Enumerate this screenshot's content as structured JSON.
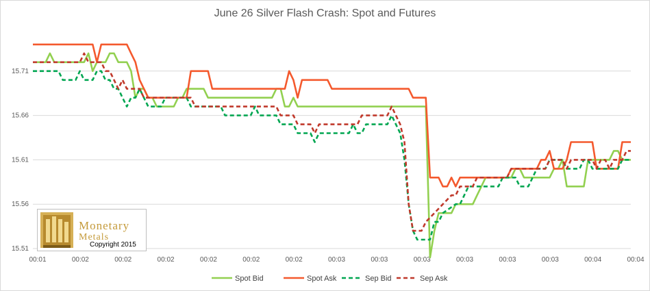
{
  "chart_data": {
    "type": "line",
    "title": "June 26 Silver Flash Crash: Spot and Futures",
    "xlabel": "",
    "ylabel": "",
    "ylim": [
      15.51,
      15.76
    ],
    "yticks": [
      "15.51",
      "15.56",
      "15.61",
      "15.66",
      "15.71"
    ],
    "xticks": [
      "00:01",
      "00:02",
      "00:02",
      "00:02",
      "00:02",
      "00:02",
      "00:02",
      "00:03",
      "00:03",
      "00:03",
      "00:03",
      "00:03",
      "00:03",
      "00:04",
      "00:04"
    ],
    "x_count": 141,
    "grid": "horizontal",
    "legend_position": "bottom",
    "series": [
      {
        "name": "Spot Bid",
        "color": "#92d050",
        "dash": "solid",
        "points": [
          [
            0,
            15.72
          ],
          [
            3,
            15.72
          ],
          [
            4,
            15.73
          ],
          [
            5,
            15.72
          ],
          [
            12,
            15.72
          ],
          [
            13,
            15.73
          ],
          [
            14,
            15.71
          ],
          [
            15,
            15.72
          ],
          [
            17,
            15.72
          ],
          [
            18,
            15.73
          ],
          [
            19,
            15.73
          ],
          [
            20,
            15.72
          ],
          [
            22,
            15.72
          ],
          [
            23,
            15.71
          ],
          [
            24,
            15.68
          ],
          [
            25,
            15.69
          ],
          [
            26,
            15.69
          ],
          [
            27,
            15.68
          ],
          [
            28,
            15.68
          ],
          [
            29,
            15.67
          ],
          [
            33,
            15.67
          ],
          [
            34,
            15.68
          ],
          [
            35,
            15.68
          ],
          [
            36,
            15.69
          ],
          [
            40,
            15.69
          ],
          [
            41,
            15.68
          ],
          [
            52,
            15.68
          ],
          [
            56,
            15.68
          ],
          [
            57,
            15.69
          ],
          [
            58,
            15.69
          ],
          [
            59,
            15.67
          ],
          [
            60,
            15.67
          ],
          [
            61,
            15.68
          ],
          [
            62,
            15.67
          ],
          [
            85,
            15.67
          ],
          [
            86,
            15.67
          ],
          [
            87,
            15.67
          ],
          [
            88,
            15.67
          ],
          [
            89,
            15.67
          ],
          [
            90,
            15.67
          ],
          [
            91,
            15.67
          ],
          [
            92,
            15.67
          ],
          [
            93,
            15.5
          ],
          [
            94,
            15.53
          ],
          [
            95,
            15.55
          ],
          [
            96,
            15.55
          ],
          [
            97,
            15.55
          ],
          [
            98,
            15.55
          ],
          [
            99,
            15.56
          ],
          [
            100,
            15.56
          ],
          [
            103,
            15.56
          ],
          [
            104,
            15.57
          ],
          [
            105,
            15.58
          ],
          [
            106,
            15.59
          ],
          [
            107,
            15.59
          ],
          [
            108,
            15.59
          ],
          [
            111,
            15.59
          ],
          [
            112,
            15.59
          ],
          [
            113,
            15.6
          ],
          [
            114,
            15.6
          ],
          [
            115,
            15.59
          ],
          [
            121,
            15.59
          ],
          [
            122,
            15.6
          ],
          [
            123,
            15.6
          ],
          [
            124,
            15.61
          ],
          [
            125,
            15.58
          ],
          [
            129,
            15.58
          ],
          [
            130,
            15.61
          ],
          [
            135,
            15.61
          ],
          [
            136,
            15.62
          ],
          [
            137,
            15.62
          ],
          [
            138,
            15.61
          ],
          [
            139,
            15.61
          ],
          [
            140,
            15.61
          ]
        ]
      },
      {
        "name": "Spot Ask",
        "color": "#f4592d",
        "dash": "solid",
        "points": [
          [
            0,
            15.74
          ],
          [
            14,
            15.74
          ],
          [
            15,
            15.72
          ],
          [
            16,
            15.74
          ],
          [
            22,
            15.74
          ],
          [
            23,
            15.73
          ],
          [
            24,
            15.72
          ],
          [
            25,
            15.7
          ],
          [
            26,
            15.69
          ],
          [
            27,
            15.68
          ],
          [
            36,
            15.68
          ],
          [
            37,
            15.71
          ],
          [
            41,
            15.71
          ],
          [
            42,
            15.69
          ],
          [
            59,
            15.69
          ],
          [
            60,
            15.71
          ],
          [
            61,
            15.7
          ],
          [
            62,
            15.68
          ],
          [
            63,
            15.7
          ],
          [
            69,
            15.7
          ],
          [
            70,
            15.69
          ],
          [
            81,
            15.69
          ],
          [
            88,
            15.69
          ],
          [
            89,
            15.68
          ],
          [
            92,
            15.68
          ],
          [
            93,
            15.59
          ],
          [
            95,
            15.59
          ],
          [
            96,
            15.58
          ],
          [
            97,
            15.58
          ],
          [
            98,
            15.59
          ],
          [
            99,
            15.58
          ],
          [
            100,
            15.59
          ],
          [
            101,
            15.59
          ],
          [
            111,
            15.59
          ],
          [
            112,
            15.6
          ],
          [
            113,
            15.6
          ],
          [
            118,
            15.6
          ],
          [
            119,
            15.61
          ],
          [
            120,
            15.61
          ],
          [
            121,
            15.62
          ],
          [
            122,
            15.6
          ],
          [
            123,
            15.6
          ],
          [
            124,
            15.6
          ],
          [
            125,
            15.61
          ],
          [
            126,
            15.63
          ],
          [
            131,
            15.63
          ],
          [
            132,
            15.6
          ],
          [
            133,
            15.6
          ],
          [
            134,
            15.6
          ],
          [
            135,
            15.6
          ],
          [
            136,
            15.6
          ],
          [
            137,
            15.6
          ],
          [
            138,
            15.63
          ],
          [
            140,
            15.63
          ]
        ]
      },
      {
        "name": "Sep Bid",
        "color": "#00a651",
        "dash": "dashed",
        "points": [
          [
            0,
            15.71
          ],
          [
            6,
            15.71
          ],
          [
            7,
            15.7
          ],
          [
            10,
            15.7
          ],
          [
            11,
            15.71
          ],
          [
            12,
            15.7
          ],
          [
            14,
            15.7
          ],
          [
            15,
            15.71
          ],
          [
            16,
            15.71
          ],
          [
            17,
            15.7
          ],
          [
            18,
            15.7
          ],
          [
            19,
            15.69
          ],
          [
            20,
            15.69
          ],
          [
            21,
            15.68
          ],
          [
            22,
            15.67
          ],
          [
            23,
            15.68
          ],
          [
            24,
            15.68
          ],
          [
            25,
            15.69
          ],
          [
            26,
            15.68
          ],
          [
            27,
            15.67
          ],
          [
            30,
            15.67
          ],
          [
            31,
            15.68
          ],
          [
            36,
            15.68
          ],
          [
            37,
            15.67
          ],
          [
            44,
            15.67
          ],
          [
            45,
            15.66
          ],
          [
            51,
            15.66
          ],
          [
            52,
            15.67
          ],
          [
            53,
            15.66
          ],
          [
            56,
            15.66
          ],
          [
            57,
            15.66
          ],
          [
            58,
            15.65
          ],
          [
            59,
            15.65
          ],
          [
            60,
            15.65
          ],
          [
            61,
            15.65
          ],
          [
            62,
            15.64
          ],
          [
            63,
            15.64
          ],
          [
            64,
            15.64
          ],
          [
            65,
            15.64
          ],
          [
            66,
            15.63
          ],
          [
            67,
            15.64
          ],
          [
            74,
            15.64
          ],
          [
            75,
            15.65
          ],
          [
            76,
            15.64
          ],
          [
            77,
            15.64
          ],
          [
            78,
            15.65
          ],
          [
            83,
            15.65
          ],
          [
            84,
            15.66
          ],
          [
            85,
            15.65
          ],
          [
            86,
            15.64
          ],
          [
            87,
            15.61
          ],
          [
            88,
            15.56
          ],
          [
            89,
            15.53
          ],
          [
            90,
            15.52
          ],
          [
            93,
            15.52
          ],
          [
            94,
            15.54
          ],
          [
            95,
            15.54
          ],
          [
            96,
            15.55
          ],
          [
            99,
            15.56
          ],
          [
            100,
            15.56
          ],
          [
            101,
            15.57
          ],
          [
            102,
            15.58
          ],
          [
            103,
            15.58
          ],
          [
            109,
            15.58
          ],
          [
            110,
            15.59
          ],
          [
            113,
            15.59
          ],
          [
            114,
            15.58
          ],
          [
            115,
            15.58
          ],
          [
            116,
            15.58
          ],
          [
            117,
            15.59
          ],
          [
            118,
            15.6
          ],
          [
            119,
            15.6
          ],
          [
            120,
            15.6
          ],
          [
            121,
            15.61
          ],
          [
            124,
            15.61
          ],
          [
            125,
            15.6
          ],
          [
            126,
            15.6
          ],
          [
            127,
            15.6
          ],
          [
            128,
            15.6
          ],
          [
            129,
            15.61
          ],
          [
            130,
            15.61
          ],
          [
            131,
            15.6
          ],
          [
            132,
            15.6
          ],
          [
            133,
            15.6
          ],
          [
            134,
            15.6
          ],
          [
            135,
            15.6
          ],
          [
            136,
            15.6
          ],
          [
            137,
            15.6
          ],
          [
            138,
            15.61
          ],
          [
            140,
            15.61
          ]
        ]
      },
      {
        "name": "Sep Ask",
        "color": "#c0392b",
        "dash": "dashed",
        "points": [
          [
            0,
            15.72
          ],
          [
            10,
            15.72
          ],
          [
            11,
            15.72
          ],
          [
            12,
            15.73
          ],
          [
            13,
            15.72
          ],
          [
            16,
            15.72
          ],
          [
            17,
            15.71
          ],
          [
            18,
            15.71
          ],
          [
            19,
            15.7
          ],
          [
            20,
            15.69
          ],
          [
            21,
            15.7
          ],
          [
            22,
            15.69
          ],
          [
            23,
            15.69
          ],
          [
            24,
            15.69
          ],
          [
            25,
            15.69
          ],
          [
            26,
            15.68
          ],
          [
            34,
            15.68
          ],
          [
            35,
            15.68
          ],
          [
            36,
            15.68
          ],
          [
            37,
            15.68
          ],
          [
            38,
            15.67
          ],
          [
            46,
            15.67
          ],
          [
            47,
            15.67
          ],
          [
            48,
            15.67
          ],
          [
            56,
            15.67
          ],
          [
            57,
            15.67
          ],
          [
            58,
            15.66
          ],
          [
            59,
            15.66
          ],
          [
            60,
            15.66
          ],
          [
            61,
            15.66
          ],
          [
            62,
            15.65
          ],
          [
            63,
            15.65
          ],
          [
            64,
            15.65
          ],
          [
            65,
            15.65
          ],
          [
            66,
            15.64
          ],
          [
            67,
            15.65
          ],
          [
            76,
            15.65
          ],
          [
            77,
            15.66
          ],
          [
            78,
            15.66
          ],
          [
            82,
            15.66
          ],
          [
            83,
            15.66
          ],
          [
            84,
            15.67
          ],
          [
            85,
            15.66
          ],
          [
            86,
            15.65
          ],
          [
            87,
            15.63
          ],
          [
            88,
            15.56
          ],
          [
            89,
            15.53
          ],
          [
            90,
            15.53
          ],
          [
            91,
            15.53
          ],
          [
            92,
            15.54
          ],
          [
            94,
            15.55
          ],
          [
            96,
            15.56
          ],
          [
            98,
            15.57
          ],
          [
            99,
            15.57
          ],
          [
            100,
            15.58
          ],
          [
            101,
            15.58
          ],
          [
            103,
            15.58
          ],
          [
            104,
            15.59
          ],
          [
            105,
            15.59
          ],
          [
            106,
            15.59
          ],
          [
            110,
            15.59
          ],
          [
            111,
            15.59
          ],
          [
            112,
            15.6
          ],
          [
            113,
            15.6
          ],
          [
            114,
            15.6
          ],
          [
            118,
            15.6
          ],
          [
            119,
            15.6
          ],
          [
            120,
            15.6
          ],
          [
            121,
            15.61
          ],
          [
            124,
            15.61
          ],
          [
            125,
            15.6
          ],
          [
            126,
            15.61
          ],
          [
            127,
            15.61
          ],
          [
            128,
            15.61
          ],
          [
            131,
            15.61
          ],
          [
            132,
            15.6
          ],
          [
            133,
            15.61
          ],
          [
            134,
            15.61
          ],
          [
            135,
            15.6
          ],
          [
            136,
            15.61
          ],
          [
            137,
            15.61
          ],
          [
            138,
            15.61
          ],
          [
            139,
            15.62
          ],
          [
            140,
            15.62
          ]
        ]
      }
    ]
  },
  "logo": {
    "word1": "Monetary",
    "word2": "Metals",
    "copyright": "Copyright 2015"
  }
}
